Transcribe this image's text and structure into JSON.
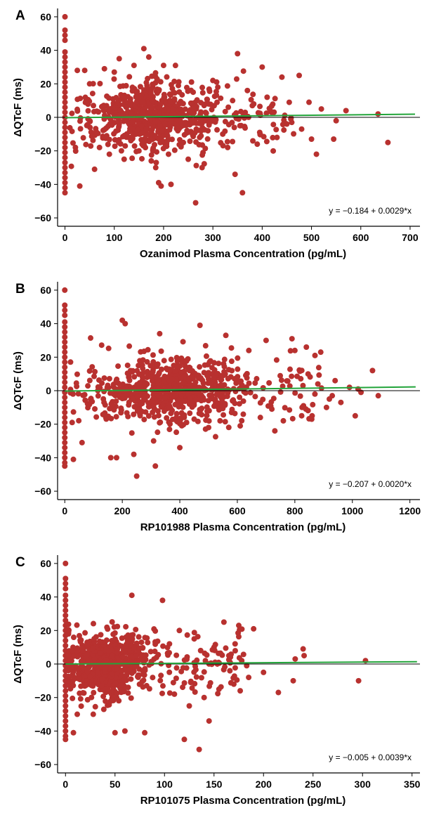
{
  "chart_data": [
    {
      "type": "scatter",
      "panel_label": "A",
      "xlabel": "Ozanimod Plasma Concentration (pg/mL)",
      "ylabel": "ΔQTcF (ms)",
      "xlim": [
        -15,
        720
      ],
      "ylim": [
        -65,
        65
      ],
      "xticks": [
        0,
        100,
        200,
        300,
        400,
        500,
        600,
        700
      ],
      "yticks": [
        -60,
        -40,
        -20,
        0,
        20,
        40,
        60
      ],
      "regression": {
        "intercept": -0.184,
        "slope": 0.0029,
        "equation": "y = −0.184 + 0.0029*x",
        "x_range": [
          0,
          710
        ],
        "color": "#22a43a"
      },
      "zero_line": true,
      "grid": false,
      "marker_color": "#b8312f",
      "points": [
        [
          0,
          60
        ],
        [
          0,
          52
        ],
        [
          0,
          49
        ],
        [
          0,
          46
        ],
        [
          0,
          39
        ],
        [
          0,
          36
        ],
        [
          0,
          33
        ],
        [
          0,
          30
        ],
        [
          0,
          27
        ],
        [
          0,
          24
        ],
        [
          0,
          21
        ],
        [
          0,
          18
        ],
        [
          0,
          15
        ],
        [
          0,
          12
        ],
        [
          0,
          9
        ],
        [
          0,
          6
        ],
        [
          0,
          3
        ],
        [
          0,
          0
        ],
        [
          0,
          -3
        ],
        [
          0,
          -6
        ],
        [
          0,
          -9
        ],
        [
          0,
          -12
        ],
        [
          0,
          -15
        ],
        [
          0,
          -18
        ],
        [
          0,
          -21
        ],
        [
          0,
          -24
        ],
        [
          0,
          -27
        ],
        [
          0,
          -30
        ],
        [
          0,
          -33
        ],
        [
          0,
          -36
        ],
        [
          0,
          -39
        ],
        [
          0,
          -42
        ],
        [
          0,
          -45
        ],
        [
          30,
          -41
        ],
        [
          60,
          -31
        ],
        [
          25,
          28
        ],
        [
          40,
          28
        ],
        [
          80,
          29
        ],
        [
          100,
          27
        ],
        [
          110,
          35
        ],
        [
          140,
          31
        ],
        [
          160,
          41
        ],
        [
          170,
          36
        ],
        [
          200,
          31
        ],
        [
          190,
          -39
        ],
        [
          195,
          -41
        ],
        [
          215,
          -40
        ],
        [
          265,
          -51
        ],
        [
          345,
          -34
        ],
        [
          360,
          -45
        ],
        [
          350,
          38
        ],
        [
          400,
          30
        ],
        [
          440,
          24
        ],
        [
          475,
          25
        ],
        [
          495,
          9
        ],
        [
          500,
          -13
        ],
        [
          510,
          -22
        ],
        [
          520,
          5
        ],
        [
          545,
          -13
        ],
        [
          550,
          -2
        ],
        [
          570,
          4
        ],
        [
          635,
          2
        ],
        [
          655,
          -15
        ],
        [
          480,
          -7
        ],
        [
          460,
          -3
        ],
        [
          430,
          -12
        ],
        [
          410,
          12
        ],
        [
          390,
          -16
        ],
        [
          370,
          16
        ],
        [
          330,
          -18
        ],
        [
          300,
          22
        ],
        [
          280,
          -21
        ],
        [
          250,
          -25
        ],
        [
          230,
          19
        ],
        [
          120,
          -25
        ],
        [
          90,
          -22
        ],
        [
          70,
          -18
        ],
        [
          50,
          20
        ],
        [
          130,
          -12
        ],
        [
          150,
          -20
        ],
        [
          175,
          -26
        ],
        [
          185,
          -27
        ],
        [
          210,
          -22
        ],
        [
          240,
          -15
        ],
        [
          260,
          15
        ],
        [
          290,
          -8
        ],
        [
          310,
          18
        ],
        [
          320,
          -10
        ],
        [
          340,
          10
        ],
        [
          355,
          -5
        ],
        [
          380,
          7
        ],
        [
          395,
          -9
        ],
        [
          420,
          3
        ],
        [
          450,
          -4
        ]
      ],
      "cloud": {
        "x_center": 180,
        "x_spread": 110,
        "x_min": 10,
        "x_max": 470,
        "y_sd": 10,
        "count": 700
      }
    },
    {
      "type": "scatter",
      "panel_label": "B",
      "xlabel": "RP101988 Plasma Concentration (pg/mL)",
      "ylabel": "ΔQTcF (ms)",
      "xlim": [
        -25,
        1235
      ],
      "ylim": [
        -65,
        65
      ],
      "xticks": [
        0,
        200,
        400,
        600,
        800,
        1000,
        1200
      ],
      "yticks": [
        -60,
        -40,
        -20,
        0,
        20,
        40,
        60
      ],
      "regression": {
        "intercept": -0.207,
        "slope": 0.002,
        "equation": "y = −0.207 + 0.0020*x",
        "x_range": [
          0,
          1220
        ],
        "color": "#22a43a"
      },
      "zero_line": true,
      "grid": false,
      "marker_color": "#b8312f",
      "points": [
        [
          0,
          60
        ],
        [
          0,
          51
        ],
        [
          0,
          48
        ],
        [
          0,
          45
        ],
        [
          0,
          41
        ],
        [
          0,
          38
        ],
        [
          0,
          35
        ],
        [
          0,
          32
        ],
        [
          0,
          29
        ],
        [
          0,
          26
        ],
        [
          0,
          23
        ],
        [
          0,
          20
        ],
        [
          0,
          17
        ],
        [
          0,
          14
        ],
        [
          0,
          11
        ],
        [
          0,
          8
        ],
        [
          0,
          5
        ],
        [
          0,
          2
        ],
        [
          0,
          -1
        ],
        [
          0,
          -4
        ],
        [
          0,
          -7
        ],
        [
          0,
          -10
        ],
        [
          0,
          -13
        ],
        [
          0,
          -16
        ],
        [
          0,
          -19
        ],
        [
          0,
          -22
        ],
        [
          0,
          -25
        ],
        [
          0,
          -28
        ],
        [
          0,
          -31
        ],
        [
          0,
          -34
        ],
        [
          0,
          -37
        ],
        [
          0,
          -40
        ],
        [
          0,
          -43
        ],
        [
          0,
          -45
        ],
        [
          30,
          -41
        ],
        [
          60,
          -31
        ],
        [
          160,
          -40
        ],
        [
          180,
          -40
        ],
        [
          240,
          -38
        ],
        [
          250,
          -51
        ],
        [
          315,
          -45
        ],
        [
          400,
          -34
        ],
        [
          200,
          42
        ],
        [
          210,
          40
        ],
        [
          330,
          34
        ],
        [
          470,
          39
        ],
        [
          560,
          33
        ],
        [
          640,
          24
        ],
        [
          700,
          30
        ],
        [
          790,
          31
        ],
        [
          800,
          24
        ],
        [
          840,
          26
        ],
        [
          870,
          21
        ],
        [
          890,
          23
        ],
        [
          930,
          -3
        ],
        [
          1010,
          -15
        ],
        [
          1020,
          1
        ],
        [
          1030,
          -1
        ],
        [
          1070,
          12
        ],
        [
          1090,
          -3
        ],
        [
          920,
          -5
        ],
        [
          860,
          -15
        ],
        [
          830,
          -9
        ],
        [
          760,
          -18
        ],
        [
          720,
          -11
        ],
        [
          680,
          -16
        ],
        [
          610,
          -21
        ],
        [
          580,
          -13
        ],
        [
          540,
          -18
        ],
        [
          500,
          -22
        ],
        [
          450,
          -17
        ],
        [
          990,
          2
        ],
        [
          960,
          -7
        ],
        [
          940,
          6
        ],
        [
          910,
          -10
        ],
        [
          880,
          4
        ]
      ],
      "cloud": {
        "x_center": 360,
        "x_spread": 230,
        "x_min": 20,
        "x_max": 900,
        "y_sd": 10,
        "count": 750
      }
    },
    {
      "type": "scatter",
      "panel_label": "C",
      "xlabel": "RP101075 Plasma Concentration (pg/mL)",
      "ylabel": "ΔQTcF (ms)",
      "xlim": [
        -8,
        358
      ],
      "ylim": [
        -65,
        65
      ],
      "xticks": [
        0,
        50,
        100,
        150,
        200,
        250,
        300,
        350
      ],
      "yticks": [
        -60,
        -40,
        -20,
        0,
        20,
        40,
        60
      ],
      "regression": {
        "intercept": -0.005,
        "slope": 0.0039,
        "equation": "y = −0.005 + 0.0039*x",
        "x_range": [
          0,
          355
        ],
        "color": "#22a43a"
      },
      "zero_line": true,
      "grid": false,
      "marker_color": "#b8312f",
      "points": [
        [
          0,
          60
        ],
        [
          0,
          51
        ],
        [
          0,
          48
        ],
        [
          0,
          45
        ],
        [
          0,
          41
        ],
        [
          0,
          38
        ],
        [
          0,
          35
        ],
        [
          0,
          32
        ],
        [
          0,
          29
        ],
        [
          0,
          26
        ],
        [
          0,
          23
        ],
        [
          0,
          20
        ],
        [
          0,
          17
        ],
        [
          0,
          14
        ],
        [
          0,
          11
        ],
        [
          0,
          8
        ],
        [
          0,
          5
        ],
        [
          0,
          2
        ],
        [
          0,
          -1
        ],
        [
          0,
          -4
        ],
        [
          0,
          -7
        ],
        [
          0,
          -10
        ],
        [
          0,
          -13
        ],
        [
          0,
          -16
        ],
        [
          0,
          -19
        ],
        [
          0,
          -22
        ],
        [
          0,
          -25
        ],
        [
          0,
          -28
        ],
        [
          0,
          -31
        ],
        [
          0,
          -34
        ],
        [
          0,
          -37
        ],
        [
          0,
          -40
        ],
        [
          0,
          -43
        ],
        [
          0,
          -45
        ],
        [
          8,
          -41
        ],
        [
          50,
          -41
        ],
        [
          60,
          -40
        ],
        [
          80,
          -41
        ],
        [
          120,
          -45
        ],
        [
          135,
          -51
        ],
        [
          145,
          -34
        ],
        [
          67,
          41
        ],
        [
          98,
          38
        ],
        [
          160,
          25
        ],
        [
          175,
          23
        ],
        [
          190,
          21
        ],
        [
          232,
          3
        ],
        [
          240,
          9
        ],
        [
          241,
          5
        ],
        [
          230,
          -10
        ],
        [
          215,
          -17
        ],
        [
          296,
          -10
        ],
        [
          303,
          2
        ],
        [
          200,
          -5
        ],
        [
          185,
          -8
        ],
        [
          170,
          -12
        ],
        [
          165,
          5
        ],
        [
          150,
          10
        ],
        [
          155,
          -15
        ],
        [
          140,
          -20
        ],
        [
          130,
          15
        ],
        [
          125,
          -25
        ],
        [
          115,
          20
        ],
        [
          110,
          -18
        ],
        [
          105,
          12
        ],
        [
          178,
          2
        ],
        [
          183,
          -1
        ]
      ],
      "cloud": {
        "x_center": 40,
        "x_spread": 35,
        "x_min": 3,
        "x_max": 180,
        "y_sd": 10,
        "count": 750
      }
    }
  ]
}
